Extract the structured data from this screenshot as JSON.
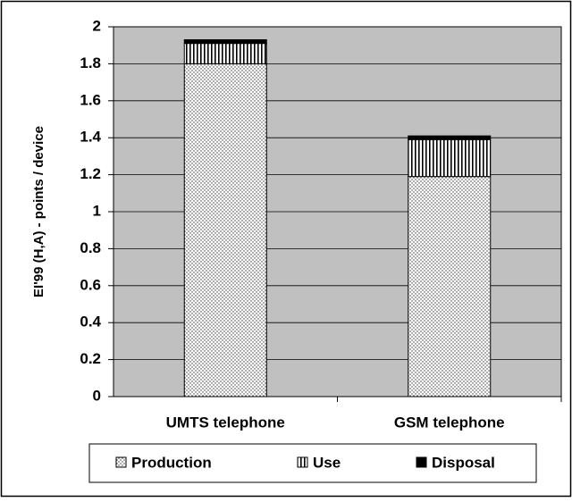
{
  "chart_data": {
    "type": "stacked_bar",
    "y_label": "EI'99 (H,A) - points / device",
    "categories": [
      "UMTS telephone",
      "GSM telephone"
    ],
    "series": [
      {
        "name": "Production",
        "color": "#ffffff",
        "pattern": "dots",
        "values": [
          1.8,
          1.19
        ]
      },
      {
        "name": "Use",
        "color": "#ffffff",
        "pattern": "vlines",
        "values": [
          0.11,
          0.2
        ]
      },
      {
        "name": "Disposal",
        "color": "#000000",
        "pattern": "solid",
        "values": [
          0.02,
          0.02
        ]
      }
    ],
    "ylim": [
      0,
      2
    ],
    "yticks": [
      0,
      0.2,
      0.4,
      0.6,
      0.8,
      1,
      1.2,
      1.4,
      1.6,
      1.8,
      2
    ],
    "grid": true,
    "legend": "bottom"
  }
}
